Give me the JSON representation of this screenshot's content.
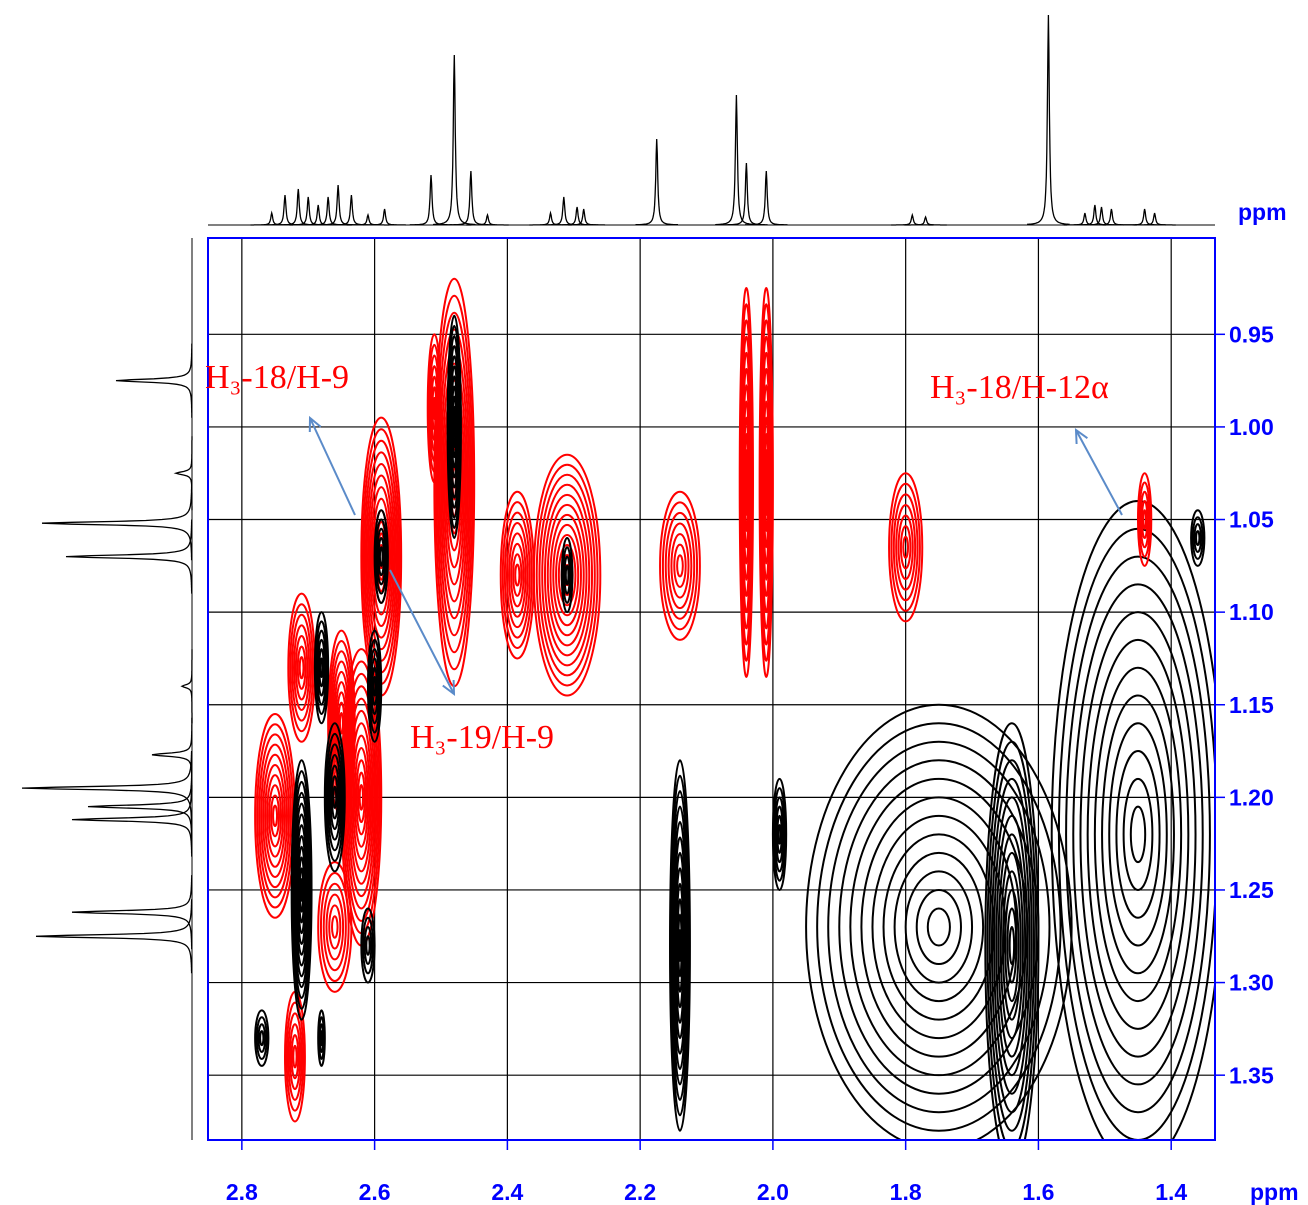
{
  "chart_data": {
    "type": "contour",
    "x_axis_label": "ppm",
    "y_axis_label": "ppm",
    "xlim": [
      2.851,
      1.334
    ],
    "ylim": [
      0.898,
      1.385
    ],
    "xticks": [
      2.8,
      2.6,
      2.4,
      2.2,
      {
        "value": 2,
        "label": "2.0"
      },
      1.8,
      1.6,
      1.4
    ],
    "yticks": [
      0.95,
      {
        "value": 1,
        "label": "1.00"
      },
      1.05,
      {
        "value": 1.1,
        "label": "1.10"
      },
      1.15,
      {
        "value": 1.2,
        "label": "1.20"
      },
      1.25,
      {
        "value": 1.3,
        "label": "1.30"
      },
      1.35
    ],
    "grid": true,
    "axis_color": "#0000ff",
    "annotations": [
      "H₃-18/H-9",
      "H₃-19/H-9",
      "H₃-18/H-12α"
    ],
    "annotation_color": "#ff0000",
    "arrow_color": "#5b8bc9",
    "cross_peaks": [
      {
        "x": 1.75,
        "y": 1.27,
        "dx": 0.2,
        "dy": 0.12,
        "color": "#000000"
      },
      {
        "x": 1.45,
        "y": 1.22,
        "dx": 0.13,
        "dy": 0.18,
        "color": "#000000"
      },
      {
        "x": 1.64,
        "y": 1.28,
        "dx": 0.04,
        "dy": 0.12,
        "color": "#000000"
      },
      {
        "x": 2.14,
        "y": 1.28,
        "dx": 0.015,
        "dy": 0.1,
        "color": "#000000"
      },
      {
        "x": 1.99,
        "y": 1.22,
        "dx": 0.01,
        "dy": 0.03,
        "color": "#000000"
      },
      {
        "x": 1.36,
        "y": 1.06,
        "dx": 0.01,
        "dy": 0.015,
        "color": "#000000"
      },
      {
        "x": 2.48,
        "y": 1.03,
        "dx": 0.03,
        "dy": 0.11,
        "color": "#ff0000"
      },
      {
        "x": 2.51,
        "y": 0.99,
        "dx": 0.01,
        "dy": 0.04,
        "color": "#ff0000"
      },
      {
        "x": 2.59,
        "y": 1.07,
        "dx": 0.03,
        "dy": 0.075,
        "color": "#ff0000"
      },
      {
        "x": 2.31,
        "y": 1.08,
        "dx": 0.05,
        "dy": 0.065,
        "color": "#ff0000"
      },
      {
        "x": 2.385,
        "y": 1.08,
        "dx": 0.025,
        "dy": 0.045,
        "color": "#ff0000"
      },
      {
        "x": 2.14,
        "y": 1.075,
        "dx": 0.03,
        "dy": 0.04,
        "color": "#ff0000"
      },
      {
        "x": 2.04,
        "y": 1.03,
        "dx": 0.01,
        "dy": 0.105,
        "color": "#ff0000"
      },
      {
        "x": 2.01,
        "y": 1.03,
        "dx": 0.01,
        "dy": 0.105,
        "color": "#ff0000"
      },
      {
        "x": 1.8,
        "y": 1.065,
        "dx": 0.025,
        "dy": 0.04,
        "color": "#ff0000"
      },
      {
        "x": 1.44,
        "y": 1.05,
        "dx": 0.01,
        "dy": 0.025,
        "color": "#ff0000"
      },
      {
        "x": 2.75,
        "y": 1.21,
        "dx": 0.03,
        "dy": 0.055,
        "color": "#ff0000"
      },
      {
        "x": 2.71,
        "y": 1.13,
        "dx": 0.02,
        "dy": 0.04,
        "color": "#ff0000"
      },
      {
        "x": 2.62,
        "y": 1.2,
        "dx": 0.03,
        "dy": 0.08,
        "color": "#ff0000"
      },
      {
        "x": 2.65,
        "y": 1.16,
        "dx": 0.02,
        "dy": 0.05,
        "color": "#ff0000"
      },
      {
        "x": 2.66,
        "y": 1.27,
        "dx": 0.025,
        "dy": 0.035,
        "color": "#ff0000"
      },
      {
        "x": 2.72,
        "y": 1.34,
        "dx": 0.015,
        "dy": 0.035,
        "color": "#ff0000"
      },
      {
        "x": 2.48,
        "y": 1.0,
        "dx": 0.01,
        "dy": 0.06,
        "color": "#000000"
      },
      {
        "x": 2.59,
        "y": 1.07,
        "dx": 0.01,
        "dy": 0.025,
        "color": "#000000"
      },
      {
        "x": 2.31,
        "y": 1.08,
        "dx": 0.008,
        "dy": 0.02,
        "color": "#000000"
      },
      {
        "x": 2.71,
        "y": 1.25,
        "dx": 0.015,
        "dy": 0.07,
        "color": "#000000"
      },
      {
        "x": 2.66,
        "y": 1.2,
        "dx": 0.015,
        "dy": 0.04,
        "color": "#000000"
      },
      {
        "x": 2.68,
        "y": 1.13,
        "dx": 0.01,
        "dy": 0.03,
        "color": "#000000"
      },
      {
        "x": 2.6,
        "y": 1.14,
        "dx": 0.01,
        "dy": 0.03,
        "color": "#000000"
      },
      {
        "x": 2.61,
        "y": 1.28,
        "dx": 0.01,
        "dy": 0.02,
        "color": "#000000"
      },
      {
        "x": 2.77,
        "y": 1.33,
        "dx": 0.01,
        "dy": 0.015,
        "color": "#000000"
      },
      {
        "x": 2.68,
        "y": 1.33,
        "dx": 0.005,
        "dy": 0.015,
        "color": "#000000"
      }
    ],
    "top_projection": {
      "positions": [
        2.755,
        2.735,
        2.715,
        2.7,
        2.685,
        2.67,
        2.655,
        2.635,
        2.61,
        2.585,
        2.515,
        2.48,
        2.455,
        2.43,
        2.335,
        2.315,
        2.295,
        2.285,
        2.175,
        2.055,
        2.04,
        2.01,
        1.79,
        1.77,
        1.585,
        1.53,
        1.515,
        1.505,
        1.49,
        1.44,
        1.425
      ],
      "intensities": [
        0.06,
        0.15,
        0.18,
        0.14,
        0.1,
        0.14,
        0.2,
        0.15,
        0.05,
        0.08,
        0.25,
        0.85,
        0.27,
        0.05,
        0.06,
        0.14,
        0.09,
        0.08,
        0.43,
        0.65,
        0.31,
        0.27,
        0.05,
        0.04,
        1.05,
        0.06,
        0.1,
        0.09,
        0.08,
        0.08,
        0.06
      ]
    },
    "left_projection": {
      "positions": [
        0.975,
        1.025,
        1.052,
        1.07,
        1.14,
        1.177,
        1.195,
        1.205,
        1.212,
        1.262,
        1.275
      ],
      "intensities": [
        0.38,
        0.08,
        0.75,
        0.63,
        0.05,
        0.2,
        0.85,
        0.52,
        0.6,
        0.6,
        0.78
      ]
    }
  }
}
